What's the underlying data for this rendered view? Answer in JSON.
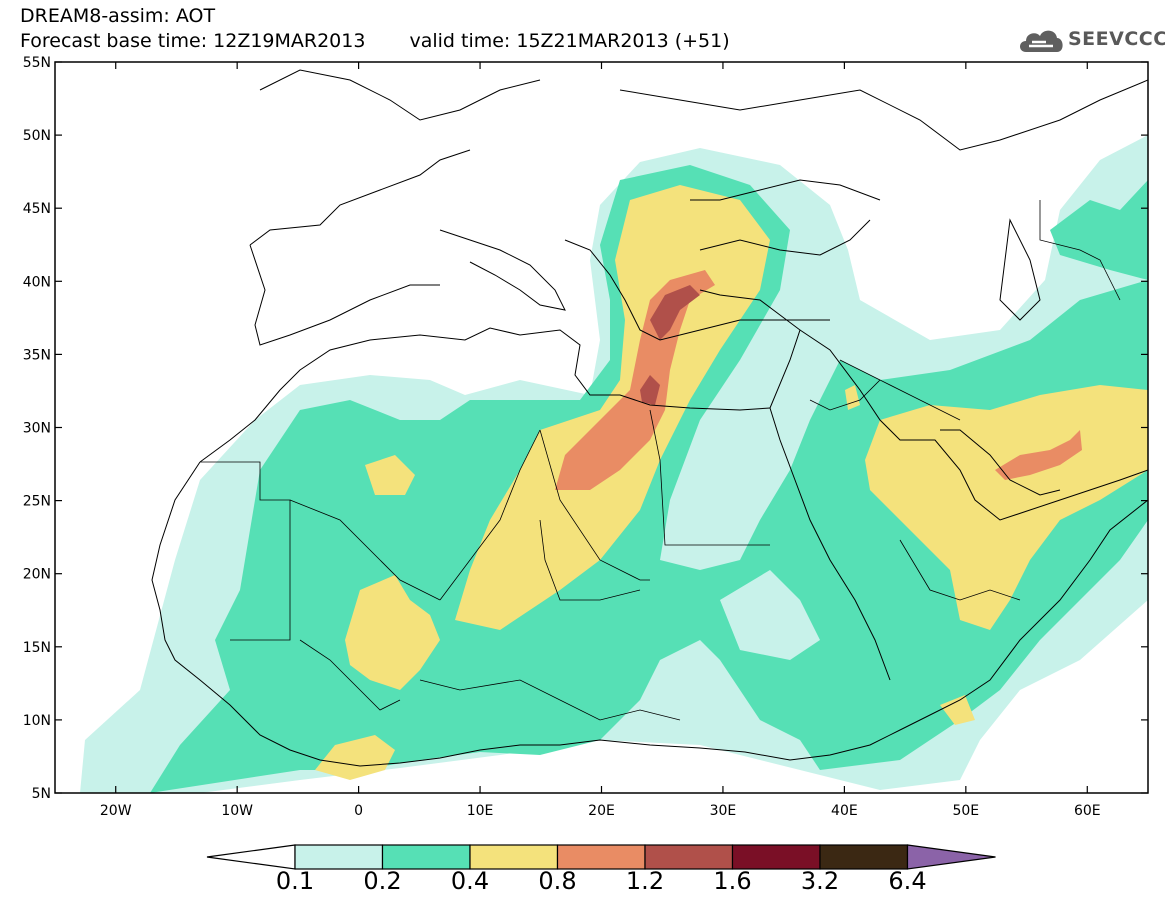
{
  "header": {
    "title_line1": "DREAM8-assim: AOT",
    "base_time": "Forecast base time: 12Z19MAR2013",
    "valid_time": "valid time: 15Z21MAR2013 (+51)",
    "logo_text": "SEEVCCC",
    "logo_icon": "cloud-icon"
  },
  "map": {
    "lon_range": [
      -25,
      65
    ],
    "lat_range": [
      5,
      55
    ],
    "lat_labels": [
      "55N",
      "50N",
      "45N",
      "40N",
      "35N",
      "30N",
      "25N",
      "20N",
      "15N",
      "10N",
      "5N"
    ],
    "lon_labels": [
      "20W",
      "10W",
      "0",
      "10E",
      "20E",
      "30E",
      "40E",
      "50E",
      "60E"
    ]
  },
  "colorbar": {
    "labels": [
      "0.1",
      "0.2",
      "0.4",
      "0.8",
      "1.2",
      "1.6",
      "3.2",
      "6.4"
    ],
    "colors": [
      "#ffffff",
      "#c8f2ea",
      "#56e0b5",
      "#f4e27c",
      "#e98c64",
      "#b0504a",
      "#7a0f26",
      "#3b2813",
      "#8b63a8"
    ]
  }
}
